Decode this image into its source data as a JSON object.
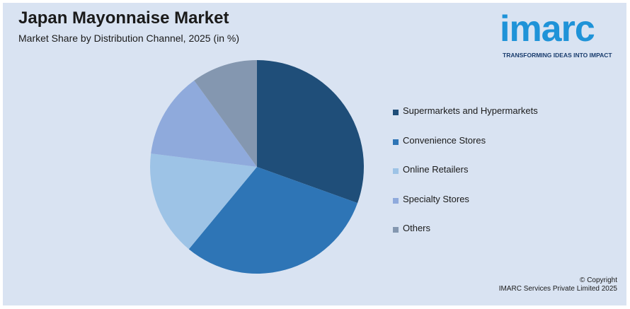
{
  "header": {
    "title": "Japan Mayonnaise Market",
    "subtitle": "Market Share by Distribution Channel, 2025 (in %)"
  },
  "logo": {
    "word": "imarc",
    "tagline": "TRANSFORMING IDEAS INTO IMPACT"
  },
  "chart_data": {
    "type": "pie",
    "title": "Japan Mayonnaise Market",
    "subtitle": "Market Share by Distribution Channel, 2025 (in %)",
    "legend_position": "right",
    "slices": [
      {
        "label": "Supermarkets and Hypermarkets",
        "value": 30.5,
        "color": "#1f4e79"
      },
      {
        "label": "Convenience Stores",
        "value": 30.5,
        "color": "#2e75b6"
      },
      {
        "label": "Online Retailers",
        "value": 16,
        "color": "#9dc3e6"
      },
      {
        "label": "Specialty Stores",
        "value": 13,
        "color": "#8faadc"
      },
      {
        "label": "Others",
        "value": 10,
        "color": "#8497b0"
      }
    ]
  },
  "footer": {
    "copyright_line1": "© Copyright",
    "copyright_line2": "IMARC Services Private Limited 2025"
  }
}
